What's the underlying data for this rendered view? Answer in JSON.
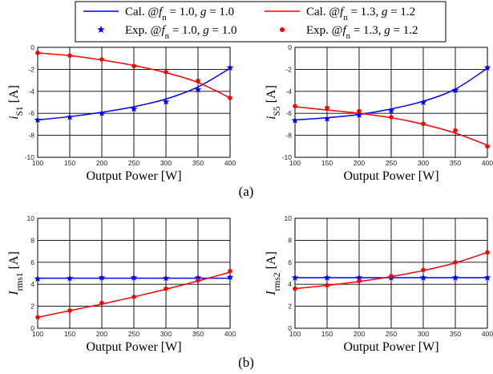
{
  "legend": {
    "entries": [
      {
        "label": "Cal. @f_n = 1.0, g = 1.0",
        "parts": [
          [
            "Cal. @",
            "n"
          ],
          [
            "f",
            "i"
          ],
          [
            "n",
            "sub"
          ],
          [
            " = 1.0, ",
            "n"
          ],
          [
            "g",
            "i"
          ],
          [
            " = 1.0",
            "n"
          ]
        ],
        "color": "#0000ff",
        "kind": "line"
      },
      {
        "label": "Cal. @f_n = 1.3, g = 1.2",
        "parts": [
          [
            "Cal. @",
            "n"
          ],
          [
            "f",
            "i"
          ],
          [
            "n",
            "sub"
          ],
          [
            " = 1.3, ",
            "n"
          ],
          [
            "g",
            "i"
          ],
          [
            " = 1.2",
            "n"
          ]
        ],
        "color": "#ff0000",
        "kind": "line"
      },
      {
        "label": "Exp. @f_n = 1.0, g = 1.0",
        "parts": [
          [
            "Exp. @",
            "n"
          ],
          [
            "f",
            "i"
          ],
          [
            "n",
            "sub"
          ],
          [
            " = 1.0, ",
            "n"
          ],
          [
            "g",
            "i"
          ],
          [
            " = 1.0",
            "n"
          ]
        ],
        "color": "#0000ff",
        "kind": "star"
      },
      {
        "label": "Exp. @f_n = 1.3, g = 1.2",
        "parts": [
          [
            "Exp. @",
            "n"
          ],
          [
            "f",
            "i"
          ],
          [
            "n",
            "sub"
          ],
          [
            " = 1.3, ",
            "n"
          ],
          [
            "g",
            "i"
          ],
          [
            " = 1.2",
            "n"
          ]
        ],
        "color": "#ff0000",
        "kind": "dot"
      }
    ]
  },
  "panel_labels": [
    "(a)",
    "(b)"
  ],
  "colors": {
    "blue": "#0000ff",
    "red": "#ff0000",
    "grid": "#000000"
  },
  "chart_data": [
    {
      "type": "line",
      "xlabel": "Output Power [W]",
      "ylabel": "i_S1 [A]",
      "ylabel_parts": [
        [
          "i",
          "i"
        ],
        [
          "S1",
          "sub"
        ],
        [
          " [A]",
          "n"
        ]
      ],
      "xlim": [
        100,
        400
      ],
      "ylim": [
        -10,
        0
      ],
      "xticks": [
        100,
        150,
        200,
        250,
        300,
        350,
        400
      ],
      "yticks": [
        -10,
        -8,
        -6,
        -4,
        -2,
        0
      ],
      "grid": true,
      "series": [
        {
          "name": "Cal. @f_n = 1.0, g = 1.0",
          "kind": "line",
          "color": "#0000ff",
          "x": [
            100,
            150,
            200,
            250,
            300,
            350,
            400
          ],
          "y": [
            -6.6,
            -6.3,
            -5.9,
            -5.4,
            -4.7,
            -3.6,
            -1.9
          ]
        },
        {
          "name": "Cal. @f_n = 1.3, g = 1.2",
          "kind": "line",
          "color": "#ff0000",
          "x": [
            100,
            150,
            200,
            250,
            300,
            350,
            400
          ],
          "y": [
            -0.5,
            -0.75,
            -1.15,
            -1.65,
            -2.3,
            -3.2,
            -4.6
          ]
        },
        {
          "name": "Exp. @f_n = 1.0, g = 1.0",
          "kind": "star",
          "color": "#0000ff",
          "x": [
            100,
            150,
            200,
            250,
            300,
            350,
            400
          ],
          "y": [
            -6.6,
            -6.35,
            -6.0,
            -5.6,
            -4.95,
            -3.85,
            -1.85
          ]
        },
        {
          "name": "Exp. @f_n = 1.3, g = 1.2",
          "kind": "dot",
          "color": "#ff0000",
          "x": [
            100,
            150,
            200,
            250,
            300,
            350,
            400
          ],
          "y": [
            -0.5,
            -0.75,
            -1.1,
            -1.7,
            -2.25,
            -3.05,
            -4.6
          ]
        }
      ]
    },
    {
      "type": "line",
      "xlabel": "Output Power [W]",
      "ylabel": "i_S5 [A]",
      "ylabel_parts": [
        [
          "i",
          "i"
        ],
        [
          "S5",
          "sub"
        ],
        [
          " [A]",
          "n"
        ]
      ],
      "xlim": [
        100,
        400
      ],
      "ylim": [
        -10,
        0
      ],
      "xticks": [
        100,
        150,
        200,
        250,
        300,
        350,
        400
      ],
      "yticks": [
        -10,
        -8,
        -6,
        -4,
        -2,
        0
      ],
      "grid": true,
      "series": [
        {
          "name": "Cal. @f_n = 1.0, g = 1.0",
          "kind": "line",
          "color": "#0000ff",
          "x": [
            100,
            150,
            200,
            250,
            300,
            350,
            400
          ],
          "y": [
            -6.6,
            -6.4,
            -6.1,
            -5.6,
            -4.9,
            -3.8,
            -1.9
          ]
        },
        {
          "name": "Cal. @f_n = 1.3, g = 1.2",
          "kind": "line",
          "color": "#ff0000",
          "x": [
            100,
            150,
            200,
            250,
            300,
            350,
            400
          ],
          "y": [
            -5.4,
            -5.7,
            -6.0,
            -6.4,
            -7.0,
            -7.8,
            -8.9
          ]
        },
        {
          "name": "Exp. @f_n = 1.0, g = 1.0",
          "kind": "star",
          "color": "#0000ff",
          "x": [
            100,
            150,
            200,
            250,
            300,
            350,
            400
          ],
          "y": [
            -6.65,
            -6.5,
            -6.15,
            -5.75,
            -5.0,
            -3.9,
            -1.85
          ]
        },
        {
          "name": "Exp. @f_n = 1.3, g = 1.2",
          "kind": "dot",
          "color": "#ff0000",
          "x": [
            100,
            150,
            200,
            250,
            300,
            350,
            400
          ],
          "y": [
            -5.35,
            -5.5,
            -5.8,
            -6.35,
            -6.95,
            -7.55,
            -9.0
          ]
        }
      ]
    },
    {
      "type": "line",
      "xlabel": "Output Power [W]",
      "ylabel": "I_rms1 [A]",
      "ylabel_parts": [
        [
          "I",
          "i"
        ],
        [
          "rms1",
          "sub"
        ],
        [
          " [A]",
          "n"
        ]
      ],
      "xlim": [
        100,
        400
      ],
      "ylim": [
        0,
        10
      ],
      "xticks": [
        100,
        150,
        200,
        250,
        300,
        350,
        400
      ],
      "yticks": [
        0,
        2,
        4,
        6,
        8,
        10
      ],
      "grid": true,
      "series": [
        {
          "name": "Cal. @f_n = 1.0, g = 1.0",
          "kind": "line",
          "color": "#0000ff",
          "x": [
            100,
            150,
            200,
            250,
            300,
            350,
            400
          ],
          "y": [
            4.55,
            4.55,
            4.55,
            4.55,
            4.55,
            4.55,
            4.55
          ]
        },
        {
          "name": "Cal. @f_n = 1.3, g = 1.2",
          "kind": "line",
          "color": "#ff0000",
          "x": [
            100,
            150,
            200,
            250,
            300,
            350,
            400
          ],
          "y": [
            1.0,
            1.6,
            2.2,
            2.85,
            3.55,
            4.3,
            5.1
          ]
        },
        {
          "name": "Exp. @f_n = 1.0, g = 1.0",
          "kind": "star",
          "color": "#0000ff",
          "x": [
            100,
            150,
            200,
            250,
            300,
            350,
            400
          ],
          "y": [
            4.5,
            4.55,
            4.6,
            4.6,
            4.55,
            4.6,
            4.65
          ]
        },
        {
          "name": "Exp. @f_n = 1.3, g = 1.2",
          "kind": "dot",
          "color": "#ff0000",
          "x": [
            100,
            150,
            200,
            250,
            300,
            350,
            400
          ],
          "y": [
            1.0,
            1.6,
            2.3,
            2.85,
            3.6,
            4.35,
            5.2
          ]
        }
      ]
    },
    {
      "type": "line",
      "xlabel": "Output Power [W]",
      "ylabel": "I_rms2 [A]",
      "ylabel_parts": [
        [
          "I",
          "i"
        ],
        [
          "rms2",
          "sub"
        ],
        [
          " [A]",
          "n"
        ]
      ],
      "xlim": [
        100,
        400
      ],
      "ylim": [
        0,
        10
      ],
      "xticks": [
        100,
        150,
        200,
        250,
        300,
        350,
        400
      ],
      "yticks": [
        0,
        2,
        4,
        6,
        8,
        10
      ],
      "grid": true,
      "series": [
        {
          "name": "Cal. @f_n = 1.0, g = 1.0",
          "kind": "line",
          "color": "#0000ff",
          "x": [
            100,
            150,
            200,
            250,
            300,
            350,
            400
          ],
          "y": [
            4.6,
            4.6,
            4.6,
            4.6,
            4.6,
            4.6,
            4.6
          ]
        },
        {
          "name": "Cal. @f_n = 1.3, g = 1.2",
          "kind": "line",
          "color": "#ff0000",
          "x": [
            100,
            150,
            200,
            250,
            300,
            350,
            400
          ],
          "y": [
            3.6,
            3.9,
            4.25,
            4.7,
            5.25,
            5.95,
            6.9
          ]
        },
        {
          "name": "Exp. @f_n = 1.0, g = 1.0",
          "kind": "star",
          "color": "#0000ff",
          "x": [
            100,
            150,
            200,
            250,
            300,
            350,
            400
          ],
          "y": [
            4.6,
            4.6,
            4.6,
            4.6,
            4.6,
            4.6,
            4.6
          ]
        },
        {
          "name": "Exp. @f_n = 1.3, g = 1.2",
          "kind": "dot",
          "color": "#ff0000",
          "x": [
            100,
            150,
            200,
            250,
            300,
            350,
            400
          ],
          "y": [
            3.6,
            3.9,
            4.3,
            4.75,
            5.3,
            6.0,
            6.9
          ]
        }
      ]
    }
  ]
}
